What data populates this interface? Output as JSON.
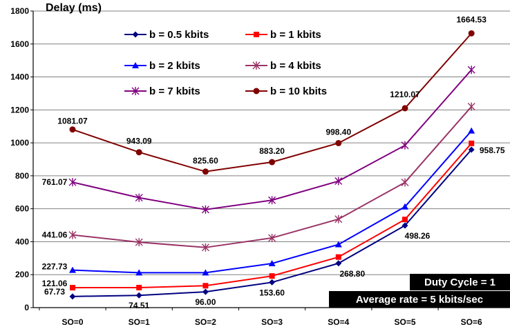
{
  "chart_data": {
    "type": "line",
    "ylabel": "Delay (ms)",
    "categories": [
      "SO=0",
      "SO=1",
      "SO=2",
      "SO=3",
      "SO=4",
      "SO=5",
      "SO=6"
    ],
    "ylim": [
      0,
      1800
    ],
    "yticks": [
      0,
      200,
      400,
      600,
      800,
      1000,
      1200,
      1400,
      1600,
      1800
    ],
    "grid": "horizontal",
    "legend_position": "top-left",
    "series": [
      {
        "name": "b = 0.5 kbits",
        "color": "#000080",
        "marker": "diamond",
        "values": [
          67.73,
          74.51,
          96.0,
          153.6,
          268.8,
          498.26,
          958.75
        ]
      },
      {
        "name": "b = 1 kbits",
        "color": "#ff0000",
        "marker": "square",
        "values": [
          121.06,
          121.5,
          133,
          192,
          307,
          535,
          997
        ]
      },
      {
        "name": "b = 2 kbits",
        "color": "#0000ff",
        "marker": "triangle",
        "values": [
          227.73,
          212,
          212,
          268,
          383,
          612,
          1073
        ]
      },
      {
        "name": "b = 4 kbits",
        "color": "#993366",
        "marker": "asterisk",
        "values": [
          441.06,
          397,
          365,
          423,
          537,
          760,
          1220
        ]
      },
      {
        "name": "b = 7 kbits",
        "color": "#800080",
        "marker": "asterisk",
        "values": [
          761.07,
          667,
          595,
          652,
          768,
          985,
          1443
        ]
      },
      {
        "name": "b = 10 kbits",
        "color": "#800000",
        "marker": "circle",
        "values": [
          1081.07,
          943.09,
          825.6,
          883.2,
          998.4,
          1210.07,
          1664.53
        ]
      }
    ],
    "annotations": [
      {
        "text": "1081.07",
        "category": "SO=0",
        "value": 1081.07
      },
      {
        "text": "943.09",
        "category": "SO=1",
        "value": 943.09
      },
      {
        "text": "825.60",
        "category": "SO=2",
        "value": 825.6
      },
      {
        "text": "883.20",
        "category": "SO=3",
        "value": 883.2
      },
      {
        "text": "998.40",
        "category": "SO=4",
        "value": 998.4
      },
      {
        "text": "1210.07",
        "category": "SO=5",
        "value": 1210.07
      },
      {
        "text": "1664.53",
        "category": "SO=6",
        "value": 1664.53
      },
      {
        "text": "761.07",
        "category": "SO=0",
        "value": 761.07
      },
      {
        "text": "441.06",
        "category": "SO=0",
        "value": 441.06
      },
      {
        "text": "227.73",
        "category": "SO=0",
        "value": 227.73
      },
      {
        "text": "121.06",
        "category": "SO=0",
        "value": 121.06
      },
      {
        "text": "67.73",
        "category": "SO=0",
        "value": 67.73
      },
      {
        "text": "74.51",
        "category": "SO=1",
        "value": 74.51
      },
      {
        "text": "96.00",
        "category": "SO=2",
        "value": 96.0
      },
      {
        "text": "153.60",
        "category": "SO=3",
        "value": 153.6
      },
      {
        "text": "268.80",
        "category": "SO=4",
        "value": 268.8
      },
      {
        "text": "498.26",
        "category": "SO=5",
        "value": 498.26
      },
      {
        "text": "958.75",
        "category": "SO=6",
        "value": 958.75
      }
    ],
    "info_boxes": [
      "Duty Cycle = 1",
      "Average rate = 5 kbits/sec"
    ],
    "box_color": "#000000"
  }
}
